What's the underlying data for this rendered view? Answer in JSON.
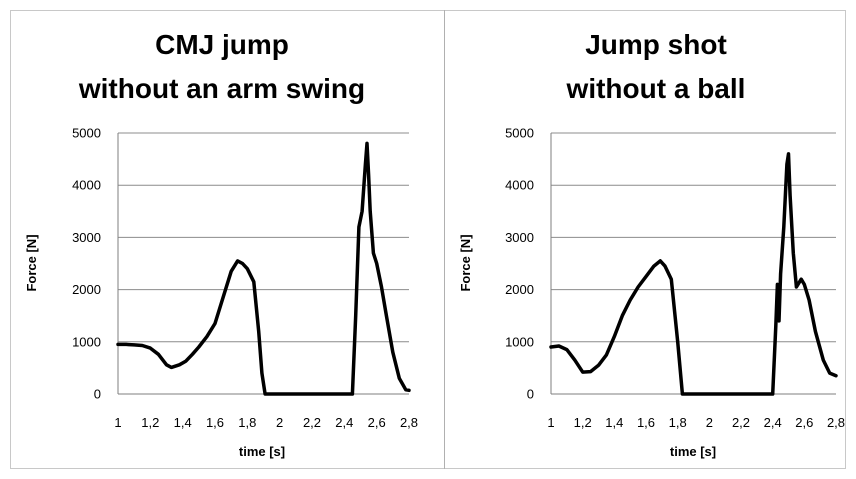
{
  "chart_data": [
    {
      "type": "line",
      "title_lines": [
        "CMJ jump",
        "without an arm swing"
      ],
      "xlabel": "time [s]",
      "ylabel": "Force [N]",
      "xlim": [
        1,
        2.8
      ],
      "ylim": [
        0,
        5000
      ],
      "x_ticks": [
        "1",
        "1,2",
        "1,4",
        "1,6",
        "1,8",
        "2",
        "2,2",
        "2,4",
        "2,6",
        "2,8"
      ],
      "y_ticks": [
        "0",
        "1000",
        "2000",
        "3000",
        "4000",
        "5000"
      ],
      "grid": "horizontal",
      "series": [
        {
          "color": "#000000",
          "x": [
            1.0,
            1.05,
            1.1,
            1.15,
            1.2,
            1.25,
            1.3,
            1.33,
            1.38,
            1.42,
            1.46,
            1.5,
            1.55,
            1.6,
            1.65,
            1.7,
            1.74,
            1.77,
            1.8,
            1.84,
            1.87,
            1.89,
            1.91,
            1.95,
            2.1,
            2.3,
            2.45,
            2.47,
            2.49,
            2.51,
            2.53,
            2.54,
            2.55,
            2.56,
            2.58,
            2.6,
            2.63,
            2.66,
            2.7,
            2.74,
            2.78,
            2.8
          ],
          "y": [
            950,
            950,
            940,
            930,
            880,
            760,
            560,
            510,
            560,
            630,
            760,
            900,
            1100,
            1350,
            1850,
            2350,
            2550,
            2500,
            2400,
            2150,
            1200,
            400,
            0,
            0,
            0,
            0,
            0,
            1500,
            3200,
            3500,
            4400,
            4800,
            4200,
            3500,
            2700,
            2500,
            2050,
            1500,
            800,
            300,
            80,
            70
          ]
        }
      ]
    },
    {
      "type": "line",
      "title_lines": [
        "Jump shot",
        "without a ball"
      ],
      "xlabel": "time [s]",
      "ylabel": "Force [N]",
      "xlim": [
        1,
        2.8
      ],
      "ylim": [
        0,
        5000
      ],
      "x_ticks": [
        "1",
        "1,2",
        "1,4",
        "1,6",
        "1,8",
        "2",
        "2,2",
        "2,4",
        "2,6",
        "2,8"
      ],
      "y_ticks": [
        "0",
        "1000",
        "2000",
        "3000",
        "4000",
        "5000"
      ],
      "grid": "horizontal",
      "series": [
        {
          "color": "#000000",
          "x": [
            1.0,
            1.05,
            1.1,
            1.15,
            1.2,
            1.25,
            1.3,
            1.35,
            1.4,
            1.45,
            1.5,
            1.55,
            1.6,
            1.65,
            1.69,
            1.72,
            1.76,
            1.8,
            1.83,
            1.85,
            2.0,
            2.2,
            2.4,
            2.42,
            2.43,
            2.44,
            2.45,
            2.47,
            2.49,
            2.5,
            2.51,
            2.53,
            2.55,
            2.58,
            2.6,
            2.63,
            2.67,
            2.72,
            2.76,
            2.8
          ],
          "y": [
            900,
            920,
            850,
            650,
            420,
            430,
            550,
            750,
            1100,
            1500,
            1800,
            2050,
            2250,
            2450,
            2550,
            2450,
            2200,
            1000,
            0,
            0,
            0,
            0,
            0,
            1300,
            2100,
            1400,
            2300,
            3200,
            4400,
            4600,
            3800,
            2700,
            2050,
            2200,
            2100,
            1800,
            1200,
            650,
            400,
            350
          ]
        }
      ]
    }
  ]
}
